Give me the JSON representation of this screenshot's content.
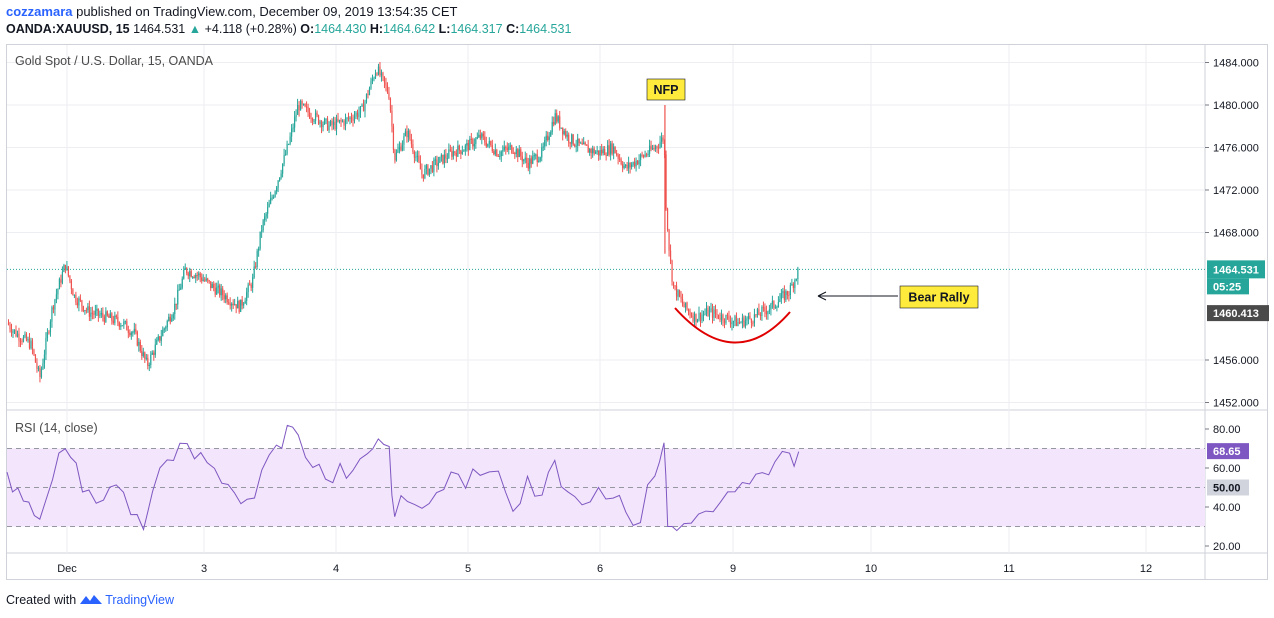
{
  "header": {
    "user": "cozzamara",
    "published_text": " published on TradingView.com, December 09, 2019 13:54:35 CET",
    "symbol": "OANDA:XAUUSD, 15",
    "last": "1464.531",
    "change_arrow": "▲",
    "change": "+4.118 (+0.28%)",
    "o_label": "O:",
    "o_value": "1464.430",
    "h_label": "H:",
    "h_value": "1464.642",
    "l_label": "L:",
    "l_value": "1464.317",
    "c_label": "C:",
    "c_value": "1464.531"
  },
  "main_pane": {
    "title": "Gold Spot / U.S. Dollar, 15, OANDA"
  },
  "rsi_pane": {
    "title": "RSI (14, close)"
  },
  "footer": {
    "created_with": "Created with",
    "brand": "TradingView"
  },
  "colors": {
    "up": "#26a69a",
    "down": "#ef5350",
    "rsi_line": "#7e57c2",
    "rsi_band": "#f3e5fb",
    "annotation_bg": "#ffeb3b",
    "curve": "#e00000"
  },
  "chart_data": [
    {
      "type": "candlestick",
      "title": "Gold Spot / U.S. Dollar, 15, OANDA",
      "ylim": [
        1451.5,
        1485.5
      ],
      "y_ticks": [
        "1484.000",
        "1480.000",
        "1476.000",
        "1472.000",
        "1468.000",
        "1456.000",
        "1452.000"
      ],
      "x_ticks": [
        "Dec",
        "3",
        "4",
        "5",
        "6",
        "9",
        "10",
        "11",
        "12"
      ],
      "price_path": [
        [
          0.0,
          1459.5
        ],
        [
          0.5,
          1458.5
        ],
        [
          0.9,
          1458.0
        ],
        [
          1.3,
          1457.5
        ],
        [
          1.8,
          1454.3
        ],
        [
          2.5,
          1461.0
        ],
        [
          3.2,
          1465.0
        ],
        [
          3.7,
          1462.0
        ],
        [
          4.5,
          1460.5
        ],
        [
          5.5,
          1460.0
        ],
        [
          6.3,
          1459.5
        ],
        [
          7.0,
          1458.5
        ],
        [
          7.7,
          1455.5
        ],
        [
          8.5,
          1458.5
        ],
        [
          9.2,
          1461.0
        ],
        [
          9.8,
          1464.5
        ],
        [
          10.5,
          1464.0
        ],
        [
          11.2,
          1463.0
        ],
        [
          12.0,
          1462.0
        ],
        [
          12.8,
          1461.0
        ],
        [
          13.5,
          1463.5
        ],
        [
          14.0,
          1468.5
        ],
        [
          14.8,
          1472.5
        ],
        [
          15.5,
          1476.5
        ],
        [
          16.0,
          1480.0
        ],
        [
          16.8,
          1479.0
        ],
        [
          17.7,
          1478.0
        ],
        [
          18.6,
          1478.5
        ],
        [
          19.5,
          1479.5
        ],
        [
          20.3,
          1483.5
        ],
        [
          21.0,
          1481.0
        ],
        [
          21.3,
          1475.0
        ],
        [
          22.0,
          1477.5
        ],
        [
          22.8,
          1473.5
        ],
        [
          23.6,
          1474.5
        ],
        [
          24.4,
          1475.5
        ],
        [
          25.2,
          1476.0
        ],
        [
          26.0,
          1477.0
        ],
        [
          27.0,
          1475.5
        ],
        [
          27.8,
          1476.0
        ],
        [
          28.6,
          1474.5
        ],
        [
          29.4,
          1475.5
        ],
        [
          30.1,
          1479.0
        ],
        [
          30.8,
          1477.0
        ],
        [
          31.6,
          1476.0
        ],
        [
          32.5,
          1475.5
        ],
        [
          33.3,
          1476.0
        ],
        [
          34.0,
          1474.0
        ],
        [
          34.8,
          1475.0
        ],
        [
          35.6,
          1476.0
        ],
        [
          36.1,
          1477.0
        ],
        [
          36.2,
          1471.0
        ],
        [
          36.4,
          1466.0
        ],
        [
          36.6,
          1463.0
        ],
        [
          37.2,
          1461.0
        ],
        [
          37.8,
          1460.0
        ],
        [
          38.6,
          1460.5
        ],
        [
          39.4,
          1460.0
        ],
        [
          40.2,
          1459.5
        ],
        [
          41.0,
          1460.0
        ],
        [
          42.0,
          1461.0
        ],
        [
          43.0,
          1462.5
        ],
        [
          43.5,
          1464.5
        ]
      ],
      "last_price": "1464.531",
      "countdown": "05:25",
      "crosshair_price": "1460.413",
      "annotations": [
        {
          "text": "NFP"
        },
        {
          "text": "Bear Rally"
        }
      ]
    },
    {
      "type": "line",
      "title": "RSI (14, close)",
      "ylim": [
        15,
        90
      ],
      "y_ticks": [
        "80.00",
        "60.00",
        "40.00",
        "20.00"
      ],
      "levels": [
        70,
        50,
        30
      ],
      "level_label": "50.00",
      "current_value": "68.65",
      "x": [
        0,
        0.6,
        1.2,
        1.8,
        2.5,
        3.2,
        3.8,
        4.5,
        5.3,
        6.0,
        6.8,
        7.5,
        8.0,
        8.8,
        9.5,
        10.3,
        11.0,
        11.8,
        12.5,
        13.2,
        14.0,
        14.8,
        15.4,
        16.0,
        16.8,
        17.5,
        18.3,
        19.0,
        19.8,
        20.4,
        21.0,
        21.3,
        22.0,
        22.8,
        23.6,
        24.4,
        25.2,
        26.0,
        27.0,
        27.8,
        28.6,
        29.4,
        30.1,
        30.8,
        31.6,
        32.5,
        33.3,
        34.0,
        34.8,
        35.6,
        36.1,
        36.3,
        36.8,
        37.6,
        38.4,
        39.2,
        40.0,
        40.8,
        41.5,
        42.2,
        43.0,
        43.5
      ],
      "values": [
        57,
        50,
        45,
        32,
        52,
        72,
        60,
        48,
        42,
        52,
        38,
        30,
        48,
        62,
        70,
        64,
        60,
        54,
        50,
        42,
        60,
        74,
        80,
        76,
        62,
        56,
        62,
        58,
        68,
        76,
        70,
        34,
        44,
        38,
        48,
        56,
        52,
        54,
        60,
        40,
        56,
        44,
        66,
        48,
        44,
        50,
        46,
        40,
        32,
        58,
        74,
        30,
        28,
        34,
        36,
        42,
        46,
        50,
        56,
        62,
        66,
        69
      ]
    }
  ]
}
